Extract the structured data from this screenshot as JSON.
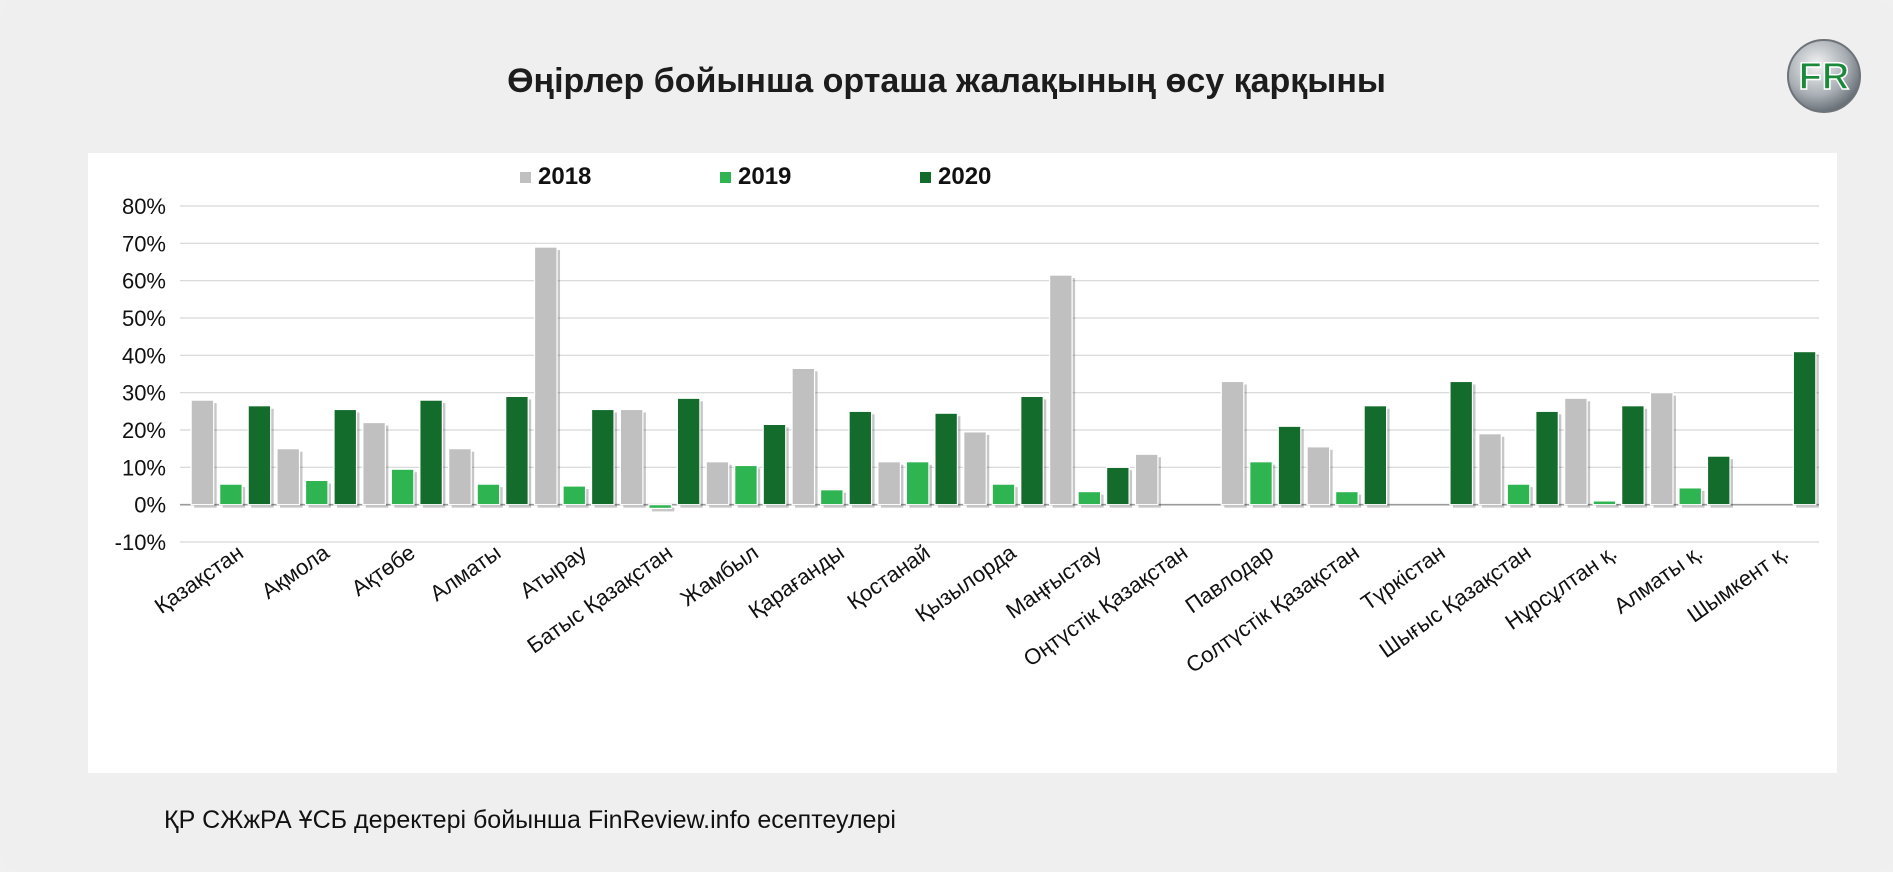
{
  "title": "Өңірлер бойынша орташа жалақының өсу қарқыны",
  "source_note": "ҚР СЖжРА ҰСБ деректері бойынша FinReview.info есептеулері",
  "logo_text": "FR",
  "colors": {
    "s2018": "#c0c0c0",
    "s2019": "#2eb450",
    "s2020": "#146c2c",
    "grid": "#d6d6d6",
    "axis": "#9a9a9a"
  },
  "chart_data": {
    "type": "bar",
    "title": "Өңірлер бойынша орташа жалақының өсу қарқыны",
    "xlabel": "",
    "ylabel": "",
    "ylim": [
      -10,
      80
    ],
    "yticks": [
      "80%",
      "70%",
      "60%",
      "50%",
      "40%",
      "30%",
      "20%",
      "10%",
      "0%",
      "-10%"
    ],
    "grid": true,
    "legend": "top",
    "categories": [
      "Қазақстан",
      "Ақмола",
      "Ақтөбе",
      "Алматы",
      "Атырау",
      "Батыс Қазақстан",
      "Жамбыл",
      "Қарағанды",
      "Қостанай",
      "Қызылорда",
      "Маңғыстау",
      "Оңтүстік Қазақстан",
      "Павлодар",
      "Солтүстік Қазақстан",
      "Түркістан",
      "Шығыс Қазақстан",
      "Нұрсұлтан қ.",
      "Алматы қ.",
      "Шымкент қ."
    ],
    "series": [
      {
        "name": "2018",
        "values": [
          28,
          15,
          22,
          15,
          69,
          25.5,
          11.5,
          36.5,
          11.5,
          19.5,
          61.5,
          13.5,
          33,
          15.5,
          null,
          19,
          28.5,
          30,
          null
        ]
      },
      {
        "name": "2019",
        "values": [
          5.5,
          6.5,
          9.5,
          5.5,
          5,
          -1,
          10.5,
          4,
          11.5,
          5.5,
          3.5,
          null,
          11.5,
          3.5,
          null,
          5.5,
          1,
          4.5,
          null
        ]
      },
      {
        "name": "2020",
        "values": [
          26.5,
          25.5,
          28,
          29,
          25.5,
          28.5,
          21.5,
          25,
          24.5,
          29,
          10,
          null,
          21,
          26.5,
          33,
          25,
          26.5,
          13,
          41
        ]
      }
    ]
  }
}
